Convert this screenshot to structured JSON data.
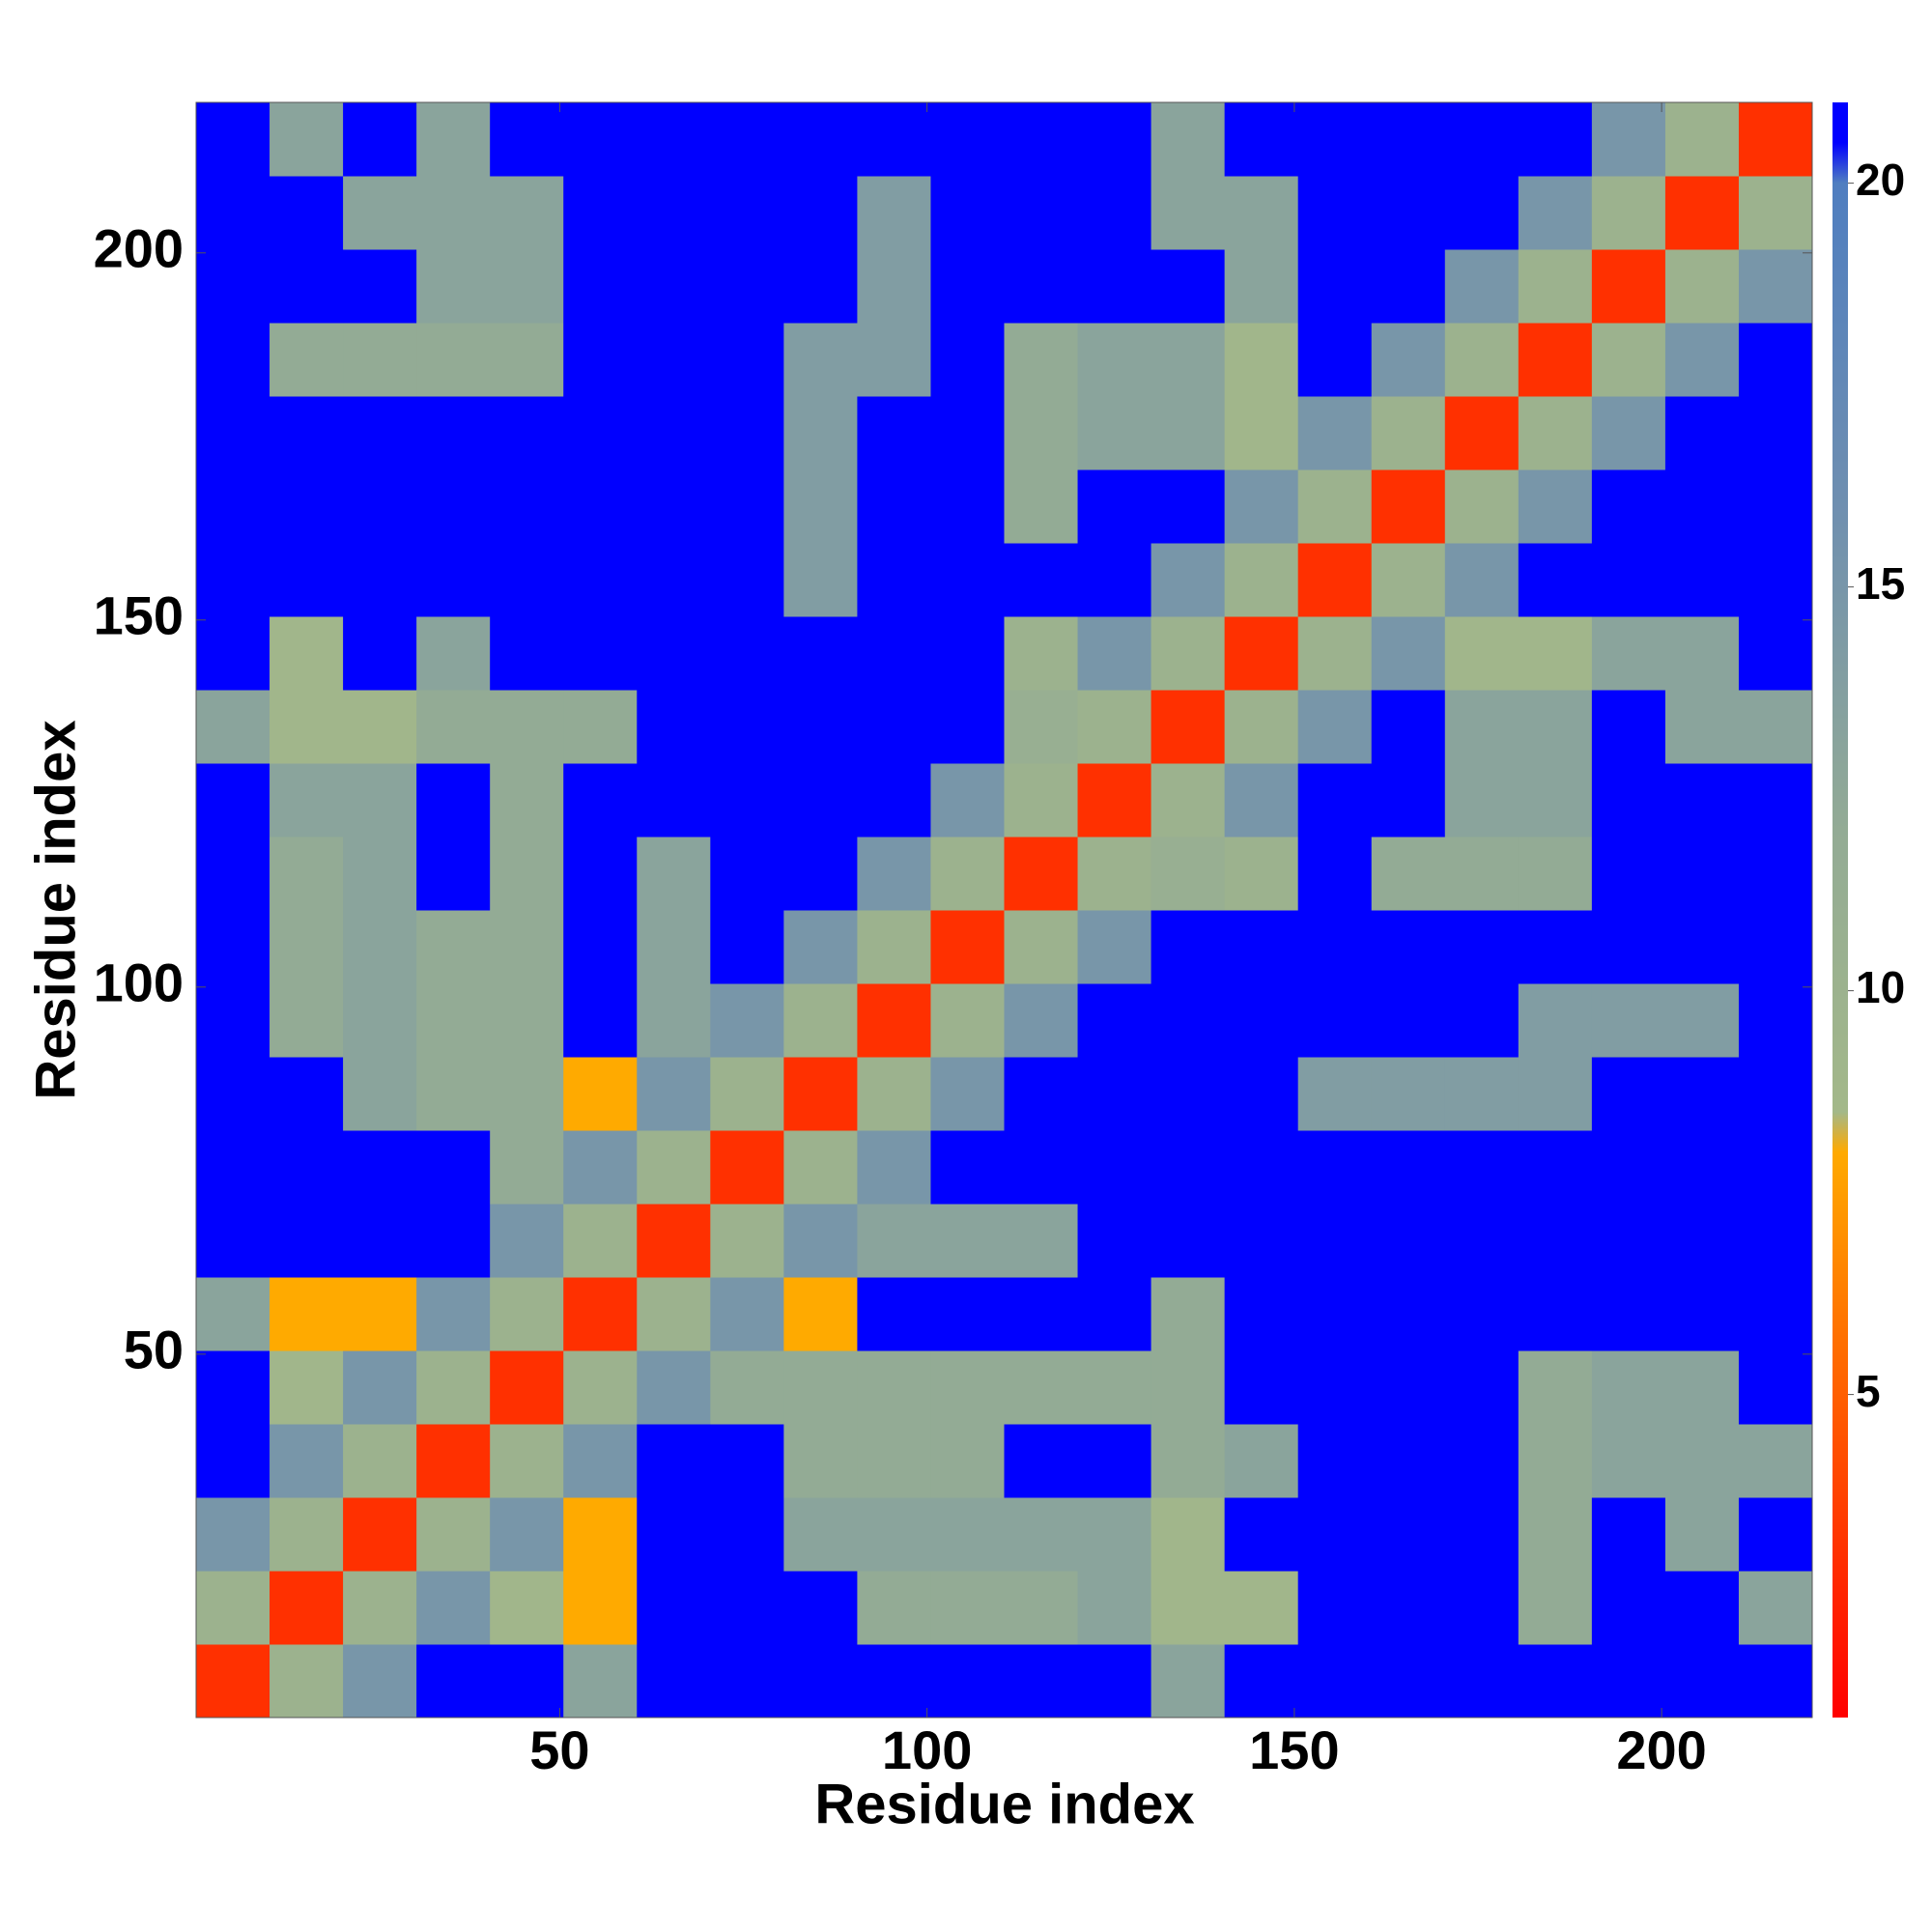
{
  "chart_data": {
    "type": "heatmap",
    "xlabel": "Residue index",
    "ylabel": "Residue index",
    "x": [
      5.5,
      15.5,
      25.5,
      35.5,
      45.5,
      55.5,
      65.5,
      75.5,
      85.5,
      95.5,
      105.5,
      115.5,
      125.5,
      135.5,
      145.5,
      155.5,
      165.5,
      175.5,
      185.5,
      195.5,
      205.5,
      215.5
    ],
    "y": [
      5.5,
      15.5,
      25.5,
      35.5,
      45.5,
      55.5,
      65.5,
      75.5,
      85.5,
      95.5,
      105.5,
      115.5,
      125.5,
      135.5,
      145.5,
      155.5,
      165.5,
      175.5,
      185.5,
      195.5,
      205.5,
      215.5
    ],
    "z": [
      [
        3,
        10,
        15,
        21,
        21,
        13,
        21,
        21,
        21,
        21,
        21,
        21,
        21,
        13,
        21,
        21,
        21,
        21,
        21,
        21,
        21,
        21
      ],
      [
        10,
        3,
        10,
        15,
        9,
        8,
        21,
        21,
        21,
        12,
        12,
        12,
        13,
        9,
        9,
        21,
        21,
        21,
        12,
        21,
        21,
        13
      ],
      [
        15,
        10,
        3,
        10,
        15,
        8,
        21,
        21,
        13,
        13,
        13,
        13,
        13,
        9,
        21,
        21,
        21,
        21,
        12,
        21,
        13,
        21
      ],
      [
        21,
        15,
        10,
        3,
        10,
        15,
        21,
        21,
        12,
        12,
        12,
        21,
        21,
        12,
        13,
        21,
        21,
        21,
        12,
        13,
        13,
        13
      ],
      [
        21,
        9,
        15,
        10,
        3,
        10,
        15,
        12,
        12,
        12,
        12,
        12,
        12,
        12,
        21,
        21,
        21,
        21,
        12,
        13,
        13,
        21
      ],
      [
        13,
        8,
        8,
        15,
        10,
        3,
        10,
        15,
        8,
        21,
        21,
        21,
        21,
        12,
        21,
        21,
        21,
        21,
        21,
        21,
        21,
        21
      ],
      [
        21,
        21,
        21,
        21,
        15,
        10,
        3,
        10,
        15,
        13,
        13,
        13,
        21,
        21,
        21,
        21,
        21,
        21,
        21,
        21,
        21,
        21
      ],
      [
        21,
        21,
        21,
        21,
        12,
        15,
        10,
        3,
        10,
        15,
        21,
        21,
        21,
        21,
        21,
        21,
        21,
        21,
        21,
        21,
        21,
        21
      ],
      [
        21,
        21,
        13,
        12,
        12,
        8,
        15,
        10,
        3,
        10,
        15,
        21,
        21,
        21,
        21,
        14,
        14,
        14,
        14,
        21,
        21,
        21
      ],
      [
        21,
        12,
        13,
        12,
        12,
        21,
        13,
        15,
        10,
        3,
        10,
        15,
        21,
        21,
        21,
        21,
        21,
        21,
        14,
        14,
        14,
        21
      ],
      [
        21,
        12,
        13,
        12,
        12,
        21,
        13,
        21,
        15,
        10,
        3,
        10,
        15,
        21,
        21,
        21,
        21,
        21,
        21,
        21,
        21,
        21
      ],
      [
        21,
        12,
        13,
        21,
        12,
        21,
        13,
        21,
        21,
        15,
        10,
        3,
        10,
        11,
        10,
        21,
        12,
        12,
        12,
        21,
        21,
        21
      ],
      [
        21,
        13,
        13,
        21,
        12,
        21,
        21,
        21,
        21,
        21,
        15,
        10,
        3,
        10,
        15,
        21,
        21,
        13,
        13,
        21,
        21,
        21
      ],
      [
        13,
        9,
        9,
        12,
        12,
        12,
        21,
        21,
        21,
        21,
        21,
        11,
        10,
        3,
        10,
        15,
        21,
        13,
        13,
        21,
        13,
        13
      ],
      [
        21,
        9,
        21,
        13,
        21,
        21,
        21,
        21,
        21,
        21,
        21,
        10,
        15,
        10,
        3,
        10,
        15,
        9,
        9,
        13,
        13,
        21
      ],
      [
        21,
        21,
        21,
        21,
        21,
        21,
        21,
        21,
        14,
        21,
        21,
        21,
        21,
        15,
        10,
        3,
        10,
        15,
        21,
        21,
        21,
        21
      ],
      [
        21,
        21,
        21,
        21,
        21,
        21,
        21,
        21,
        14,
        21,
        21,
        12,
        21,
        21,
        15,
        10,
        3,
        10,
        15,
        21,
        21,
        21
      ],
      [
        21,
        21,
        21,
        21,
        21,
        21,
        21,
        21,
        14,
        21,
        21,
        12,
        13,
        13,
        9,
        15,
        10,
        3,
        10,
        15,
        21,
        21
      ],
      [
        21,
        12,
        12,
        12,
        12,
        21,
        21,
        21,
        14,
        14,
        21,
        12,
        13,
        13,
        9,
        21,
        15,
        10,
        3,
        10,
        15,
        21
      ],
      [
        21,
        21,
        21,
        13,
        13,
        21,
        21,
        21,
        21,
        14,
        21,
        21,
        21,
        21,
        13,
        21,
        21,
        15,
        10,
        3,
        10,
        15
      ],
      [
        21,
        21,
        13,
        13,
        13,
        21,
        21,
        21,
        21,
        14,
        21,
        21,
        21,
        13,
        13,
        21,
        21,
        21,
        15,
        10,
        3,
        10
      ],
      [
        21,
        13,
        21,
        13,
        21,
        21,
        21,
        21,
        21,
        21,
        21,
        21,
        21,
        13,
        21,
        21,
        21,
        21,
        21,
        15,
        10,
        3
      ]
    ],
    "xlim": [
      0.5,
      220.5
    ],
    "ylim": [
      0.5,
      220.5
    ],
    "xticks": [
      50,
      100,
      150,
      200
    ],
    "yticks": [
      50,
      100,
      150,
      200
    ],
    "zlim": [
      1,
      21
    ],
    "zticks": [
      5,
      10,
      15,
      20
    ],
    "colorscale": [
      [
        1,
        "#ff0000"
      ],
      [
        6,
        "#ff7700"
      ],
      [
        8,
        "#ffaa00"
      ],
      [
        8.5,
        "#a3b889"
      ],
      [
        12,
        "#93ab95"
      ],
      [
        16,
        "#6f8fb0"
      ],
      [
        20,
        "#4f7ec0"
      ],
      [
        20.5,
        "#0000ff"
      ],
      [
        21,
        "#0000ff"
      ]
    ]
  }
}
